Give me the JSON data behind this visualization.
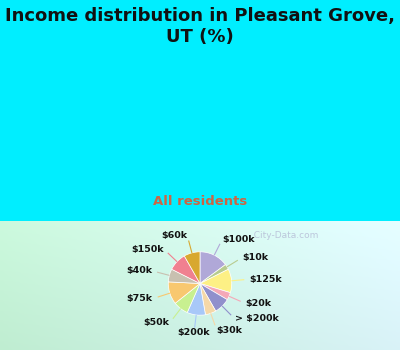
{
  "title": "Income distribution in Pleasant Grove,\nUT (%)",
  "subtitle": "All residents",
  "title_color": "#111111",
  "subtitle_color": "#cc6644",
  "bg_top": "#00eeff",
  "watermark": "City-Data.com",
  "slices": [
    {
      "label": "$100k",
      "value": 13.5,
      "color": "#b0a8d8"
    },
    {
      "label": "$10k",
      "value": 2.5,
      "color": "#b8cc90"
    },
    {
      "label": "$125k",
      "value": 11.0,
      "color": "#fdf085"
    },
    {
      "label": "$20k",
      "value": 3.5,
      "color": "#f5a8b8"
    },
    {
      "label": "> $200k",
      "value": 7.5,
      "color": "#9090cc"
    },
    {
      "label": "$30k",
      "value": 5.0,
      "color": "#f5d8a8"
    },
    {
      "label": "$200k",
      "value": 8.5,
      "color": "#a8c8f8"
    },
    {
      "label": "$50k",
      "value": 7.0,
      "color": "#c8f090"
    },
    {
      "label": "$75k",
      "value": 10.5,
      "color": "#f8c870"
    },
    {
      "label": "$40k",
      "value": 6.0,
      "color": "#c8c0b0"
    },
    {
      "label": "$150k",
      "value": 8.5,
      "color": "#f08090"
    },
    {
      "label": "$60k",
      "value": 7.5,
      "color": "#d8a830"
    }
  ],
  "figsize": [
    4.0,
    3.5
  ],
  "dpi": 100,
  "title_ratio": 0.37,
  "title_fontsize": 13.0,
  "subtitle_fontsize": 9.5
}
